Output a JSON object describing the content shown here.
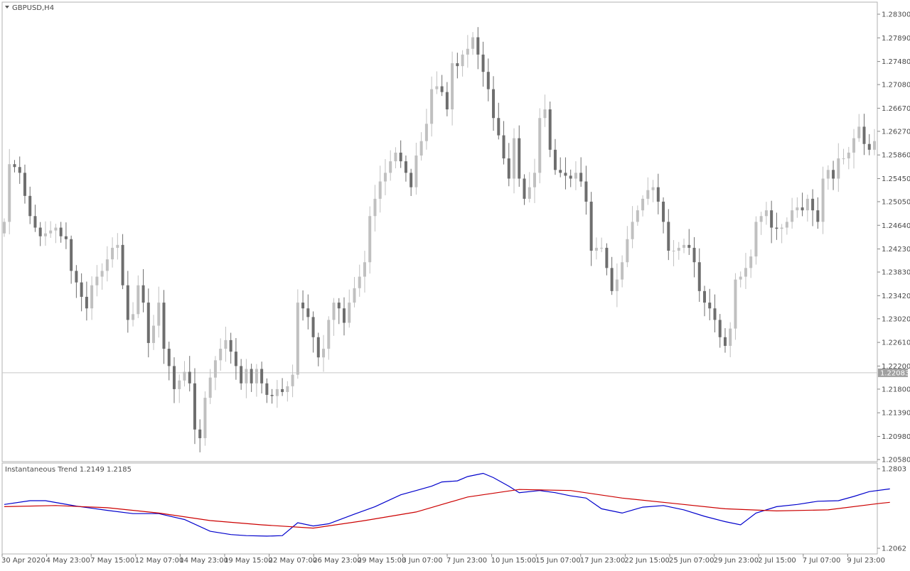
{
  "chart_data": [
    {
      "type": "candlestick",
      "symbol_label": "GBPUSD,H4",
      "ylim": [
        1.2058,
        1.283
      ],
      "ytick_labels": [
        "1.28300",
        "1.27890",
        "1.27480",
        "1.27080",
        "1.26670",
        "1.26270",
        "1.25860",
        "1.25450",
        "1.25050",
        "1.24640",
        "1.24230",
        "1.23830",
        "1.23420",
        "1.23020",
        "1.22610",
        "1.22200",
        "1.21800",
        "1.21390",
        "1.20980",
        "1.20580"
      ],
      "current_price": 1.22083,
      "current_price_label": "1.22083",
      "bull_color": "#c0c0c0",
      "bear_color": "#6e6e6e",
      "closes": [
        1.247,
        1.257,
        1.2565,
        1.2555,
        1.2515,
        1.248,
        1.246,
        1.2445,
        1.245,
        1.2455,
        1.246,
        1.2445,
        1.244,
        1.2385,
        1.2365,
        1.234,
        1.232,
        1.236,
        1.2375,
        1.2385,
        1.2405,
        1.2425,
        1.243,
        1.236,
        1.23,
        1.231,
        1.236,
        1.233,
        1.226,
        1.229,
        1.233,
        1.225,
        1.222,
        1.218,
        1.2195,
        1.221,
        1.219,
        1.211,
        1.2095,
        1.2165,
        1.22,
        1.223,
        1.225,
        1.2265,
        1.2245,
        1.222,
        1.219,
        1.2215,
        1.219,
        1.2215,
        1.219,
        1.217,
        1.2168,
        1.218,
        1.2175,
        1.2185,
        1.2205,
        1.233,
        1.232,
        1.2305,
        1.227,
        1.2235,
        1.225,
        1.23,
        1.233,
        1.232,
        1.2295,
        1.233,
        1.2355,
        1.2375,
        1.24,
        1.248,
        1.251,
        1.254,
        1.2555,
        1.2575,
        1.259,
        1.2575,
        1.2555,
        1.253,
        1.2585,
        1.261,
        1.264,
        1.27,
        1.2705,
        1.2695,
        1.2665,
        1.2745,
        1.274,
        1.276,
        1.277,
        1.279,
        1.276,
        1.273,
        1.27,
        1.265,
        1.262,
        1.258,
        1.2545,
        1.2615,
        1.2545,
        1.251,
        1.253,
        1.2555,
        1.265,
        1.2665,
        1.2595,
        1.256,
        1.2555,
        1.255,
        1.2545,
        1.2555,
        1.254,
        1.2505,
        1.242,
        1.2425,
        1.2425,
        1.239,
        1.235,
        1.237,
        1.24,
        1.244,
        1.247,
        1.249,
        1.251,
        1.2525,
        1.253,
        1.2505,
        1.247,
        1.242,
        1.242,
        1.2425,
        1.243,
        1.2425,
        1.24,
        1.235,
        1.233,
        1.232,
        1.23,
        1.227,
        1.2255,
        1.2285,
        1.237,
        1.2375,
        1.239,
        1.241,
        1.247,
        1.248,
        1.249,
        1.246,
        1.2458,
        1.246,
        1.247,
        1.249,
        1.2495,
        1.249,
        1.251,
        1.249,
        1.247,
        1.2545,
        1.256,
        1.2545,
        1.258,
        1.258,
        1.259,
        1.2615,
        1.2635,
        1.2605,
        1.2595,
        1.261
      ],
      "xtick_labels": [
        "30 Apr 2020",
        "4 May 23:00",
        "7 May 15:00",
        "12 May 07:00",
        "14 May 23:00",
        "19 May 15:00",
        "22 May 07:00",
        "26 May 23:00",
        "29 May 15:00",
        "3 Jun 07:00",
        "7 Jun 23:00",
        "10 Jun 15:00",
        "15 Jun 07:00",
        "17 Jun 23:00",
        "22 Jun 15:00",
        "25 Jun 07:00",
        "29 Jun 23:00",
        "2 Jul 15:00",
        "7 Jul 07:00",
        "9 Jul 23:00"
      ]
    },
    {
      "type": "line",
      "title": "Instantaneous Trend 1.2149 1.2185",
      "ylim": [
        1.2062,
        1.2803
      ],
      "ytick_labels": [
        "1.2803",
        "1.2062"
      ],
      "series": [
        {
          "color": "#0000cc",
          "points": [
            [
              0,
              1.247
            ],
            [
              5,
              1.2505
            ],
            [
              8,
              1.2505
            ],
            [
              14,
              1.2455
            ],
            [
              20,
              1.2415
            ],
            [
              25,
              1.2385
            ],
            [
              30,
              1.2385
            ],
            [
              35,
              1.233
            ],
            [
              40,
              1.222
            ],
            [
              44,
              1.219
            ],
            [
              47,
              1.218
            ],
            [
              51,
              1.2175
            ],
            [
              54,
              1.218
            ],
            [
              57,
              1.23
            ],
            [
              60,
              1.227
            ],
            [
              63,
              1.229
            ],
            [
              68,
              1.238
            ],
            [
              72,
              1.245
            ],
            [
              77,
              1.256
            ],
            [
              80,
              1.26
            ],
            [
              83,
              1.264
            ],
            [
              85,
              1.268
            ],
            [
              88,
              1.269
            ],
            [
              90,
              1.273
            ],
            [
              93,
              1.276
            ],
            [
              95,
              1.272
            ],
            [
              98,
              1.264
            ],
            [
              100,
              1.258
            ],
            [
              104,
              1.26
            ],
            [
              107,
              1.258
            ],
            [
              110,
              1.255
            ],
            [
              113,
              1.253
            ],
            [
              116,
              1.243
            ],
            [
              120,
              1.239
            ],
            [
              124,
              1.2445
            ],
            [
              128,
              1.246
            ],
            [
              132,
              1.242
            ],
            [
              136,
              1.236
            ],
            [
              140,
              1.231
            ],
            [
              143,
              1.228
            ],
            [
              146,
              1.239
            ],
            [
              150,
              1.245
            ],
            [
              154,
              1.247
            ],
            [
              158,
              1.25
            ],
            [
              162,
              1.2505
            ],
            [
              165,
              1.2545
            ],
            [
              168,
              1.259
            ],
            [
              172,
              1.2615
            ]
          ]
        },
        {
          "color": "#cc0000",
          "points": [
            [
              0,
              1.245
            ],
            [
              10,
              1.246
            ],
            [
              20,
              1.244
            ],
            [
              30,
              1.239
            ],
            [
              40,
              1.232
            ],
            [
              50,
              1.228
            ],
            [
              60,
              1.225
            ],
            [
              70,
              1.232
            ],
            [
              80,
              1.24
            ],
            [
              90,
              1.254
            ],
            [
              100,
              1.261
            ],
            [
              110,
              1.26
            ],
            [
              120,
              1.253
            ],
            [
              130,
              1.248
            ],
            [
              140,
              1.243
            ],
            [
              150,
              1.241
            ],
            [
              160,
              1.242
            ],
            [
              170,
              1.248
            ],
            [
              172,
              1.249
            ]
          ]
        }
      ]
    }
  ]
}
